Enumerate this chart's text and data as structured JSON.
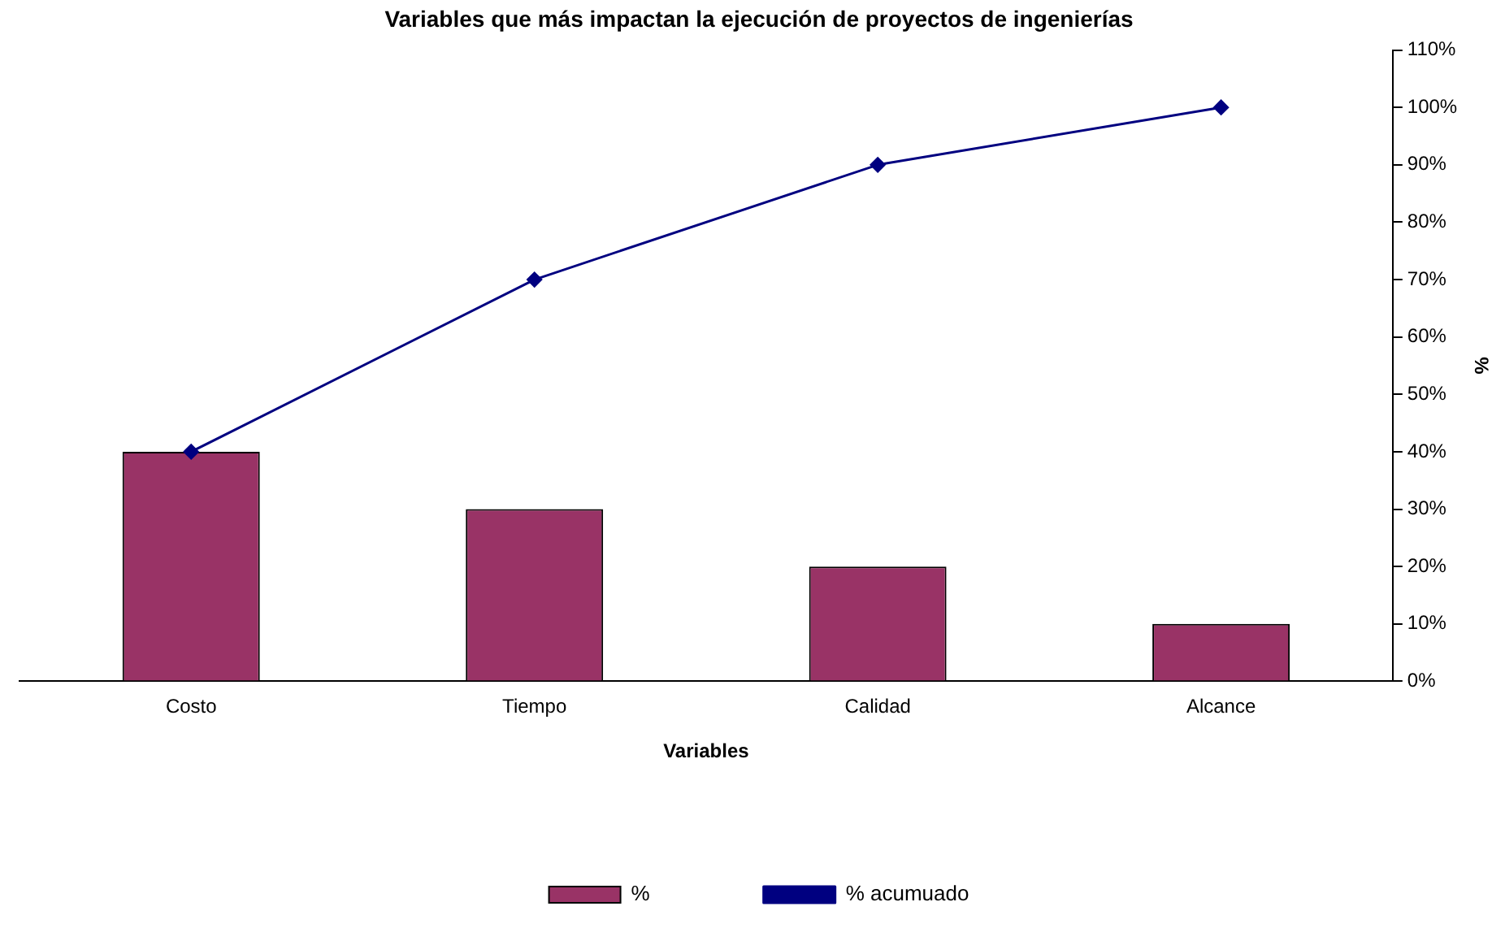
{
  "chart_data": {
    "type": "bar",
    "title": "Variables que más impactan la ejecución de proyectos de ingenierías",
    "xlabel": "Variables",
    "ylabel": "%",
    "categories": [
      "Costo",
      "Tiempo",
      "Calidad",
      "Alcance"
    ],
    "series": [
      {
        "name": "%",
        "color": "#993366",
        "values": [
          40,
          30,
          20,
          10
        ]
      },
      {
        "name": "% acumuado",
        "type": "line",
        "color": "#000080",
        "values": [
          40,
          70,
          90,
          100
        ],
        "marker": "diamond",
        "line_style": "solid"
      }
    ],
    "ylim": [
      0,
      110
    ],
    "yticks": [
      {
        "value": 0,
        "label": "0%"
      },
      {
        "value": 10,
        "label": "10%"
      },
      {
        "value": 20,
        "label": "20%"
      },
      {
        "value": 30,
        "label": "30%"
      },
      {
        "value": 40,
        "label": "40%"
      },
      {
        "value": 50,
        "label": "50%"
      },
      {
        "value": 60,
        "label": "60%"
      },
      {
        "value": 70,
        "label": "70%"
      },
      {
        "value": 80,
        "label": "80%"
      },
      {
        "value": 90,
        "label": "90%"
      },
      {
        "value": 100,
        "label": "100%"
      },
      {
        "value": 110,
        "label": "110%"
      }
    ],
    "grid": false,
    "legend": "bottom"
  }
}
